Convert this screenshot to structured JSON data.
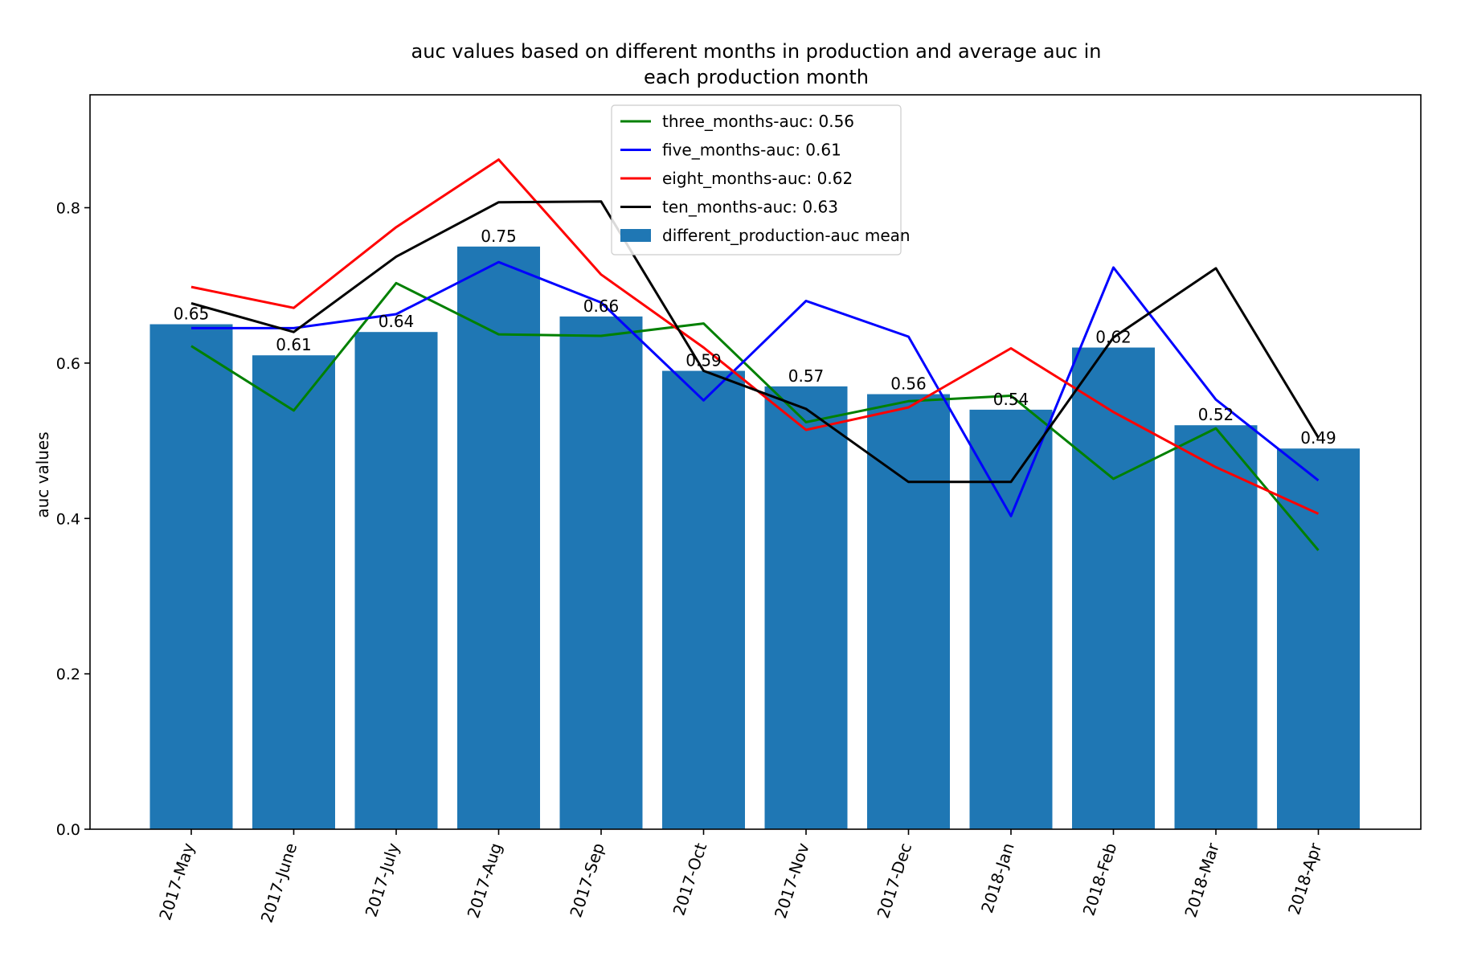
{
  "chart_data": {
    "type": "bar",
    "title_lines": [
      "auc values based on different months in production and average auc in",
      "each production month"
    ],
    "xlabel": "",
    "ylabel": "auc values",
    "ylim": [
      0,
      0.9
    ],
    "yticks": [
      0.0,
      0.2,
      0.4,
      0.6,
      0.8
    ],
    "ytick_labels": [
      "0.0",
      "0.2",
      "0.4",
      "0.6",
      "0.8"
    ],
    "categories": [
      "2017-May",
      "2017-June",
      "2017-July",
      "2017-Aug",
      "2017-Sep",
      "2017-Oct",
      "2017-Nov",
      "2017-Dec",
      "2018-Jan",
      "2018-Feb",
      "2018-Mar",
      "2018-Apr"
    ],
    "bar_series": {
      "name": "different_production-auc mean",
      "color": "#1f77b4",
      "values": [
        0.65,
        0.61,
        0.64,
        0.75,
        0.66,
        0.59,
        0.57,
        0.56,
        0.54,
        0.62,
        0.52,
        0.49
      ],
      "labels": [
        "0.65",
        "0.61",
        "0.64",
        "0.75",
        "0.66",
        "0.59",
        "0.57",
        "0.56",
        "0.54",
        "0.62",
        "0.52",
        "0.49"
      ]
    },
    "line_series": [
      {
        "name": "three_months-auc: 0.56",
        "color": "#008000",
        "values": [
          0.622,
          0.539,
          0.703,
          0.637,
          0.635,
          0.651,
          0.524,
          0.551,
          0.558,
          0.451,
          0.516,
          0.359
        ]
      },
      {
        "name": "five_months-auc: 0.61",
        "color": "#0000ff",
        "values": [
          0.645,
          0.645,
          0.663,
          0.73,
          0.678,
          0.552,
          0.68,
          0.634,
          0.403,
          0.723,
          0.553,
          0.449
        ]
      },
      {
        "name": "eight_months-auc: 0.62",
        "color": "#ff0000",
        "values": [
          0.698,
          0.671,
          0.775,
          0.862,
          0.714,
          0.62,
          0.514,
          0.543,
          0.619,
          0.537,
          0.466,
          0.406
        ]
      },
      {
        "name": "ten_months-auc: 0.63",
        "color": "#000000",
        "values": [
          0.677,
          0.64,
          0.737,
          0.807,
          0.808,
          0.59,
          0.541,
          0.447,
          0.447,
          0.633,
          0.722,
          0.504
        ]
      }
    ],
    "legend": {
      "position": "upper-center",
      "entries": [
        "three_months-auc: 0.56",
        "five_months-auc: 0.61",
        "eight_months-auc: 0.62",
        "ten_months-auc: 0.63",
        "different_production-auc mean"
      ]
    },
    "grid": false
  }
}
